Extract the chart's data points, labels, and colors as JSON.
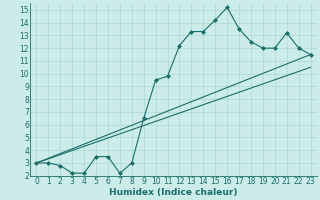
{
  "xlabel": "Humidex (Indice chaleur)",
  "bg_color": "#ccecea",
  "line_color": "#1a6e6a",
  "grid_color": "#aad8d4",
  "xlim": [
    -0.5,
    23.5
  ],
  "ylim": [
    2,
    15.5
  ],
  "xticks": [
    0,
    1,
    2,
    3,
    4,
    5,
    6,
    7,
    8,
    9,
    10,
    11,
    12,
    13,
    14,
    15,
    16,
    17,
    18,
    19,
    20,
    21,
    22,
    23
  ],
  "yticks": [
    2,
    3,
    4,
    5,
    6,
    7,
    8,
    9,
    10,
    11,
    12,
    13,
    14,
    15
  ],
  "line1_x": [
    0,
    1,
    2,
    3,
    4,
    5,
    6,
    7,
    8,
    9,
    10,
    11,
    12,
    13,
    14,
    15,
    16,
    17,
    18,
    19,
    20,
    21,
    22,
    23
  ],
  "line1_y": [
    3.0,
    3.0,
    2.8,
    2.2,
    2.2,
    3.5,
    3.5,
    2.2,
    3.0,
    6.5,
    9.5,
    9.8,
    12.2,
    13.3,
    13.3,
    14.2,
    15.2,
    13.5,
    12.5,
    12.0,
    12.0,
    13.2,
    12.0,
    11.5
  ],
  "line2_x": [
    0,
    23
  ],
  "line2_y": [
    3.0,
    11.5
  ],
  "line3_x": [
    0,
    23
  ],
  "line3_y": [
    3.0,
    10.5
  ],
  "fontsize_label": 6.5,
  "fontsize_tick": 5.5,
  "marker": "D",
  "markersize": 2.0,
  "linewidth": 0.8
}
